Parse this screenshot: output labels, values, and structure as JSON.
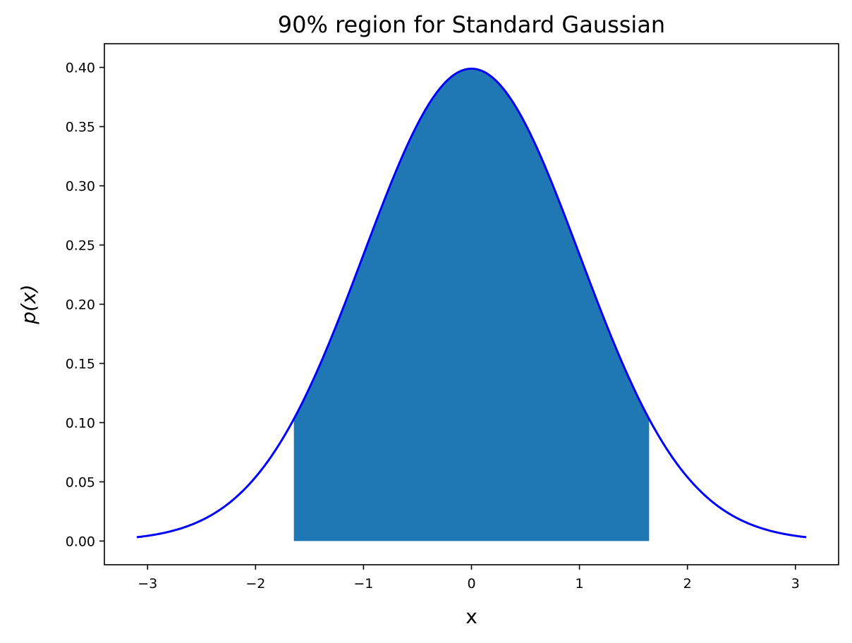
{
  "chart_data": {
    "type": "area",
    "title": "90% region for Standard Gaussian",
    "xlabel": "x",
    "ylabel": "p(x)",
    "xlim": [
      -3.4,
      3.4
    ],
    "ylim": [
      -0.02,
      0.42
    ],
    "x_range": [
      -3.1,
      3.1
    ],
    "x_ticks": [
      -3,
      -2,
      -1,
      0,
      1,
      2,
      3
    ],
    "x_tick_labels": [
      "−3",
      "−2",
      "−1",
      "0",
      "1",
      "2",
      "3"
    ],
    "y_ticks": [
      0.0,
      0.05,
      0.1,
      0.15,
      0.2,
      0.25,
      0.3,
      0.35,
      0.4
    ],
    "y_tick_labels": [
      "0.00",
      "0.05",
      "0.10",
      "0.15",
      "0.20",
      "0.25",
      "0.30",
      "0.35",
      "0.40"
    ],
    "series": [
      {
        "kind": "curve",
        "function": "standard normal pdf",
        "mean": 0,
        "std": 1,
        "color": "#0000ff"
      },
      {
        "kind": "shaded_region",
        "x_from": -1.645,
        "x_to": 1.645,
        "probability": 0.9,
        "color": "#1f77b4"
      }
    ],
    "grid": false,
    "legend": "none"
  }
}
